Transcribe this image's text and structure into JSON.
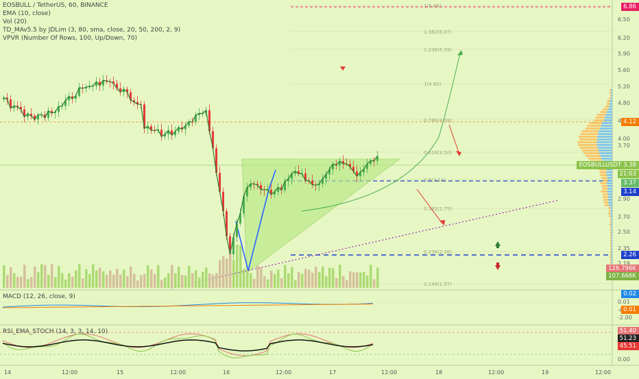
{
  "header": {
    "title": "EOSBULL / TetherUS, 60, BINANCE",
    "indicators": [
      "EMA (10, close)",
      "Vol (20)",
      "TD_MAv5.5 by JDLim (3, 80, sma, close, 20, 50, 200, 2, 9)",
      "VPVR (Number Of Rows, 100, Up/Down, 70)"
    ]
  },
  "panes": {
    "macd": "MACD (12, 26, close, 9)",
    "rsi": "RSI_EMA_STOCH (14, 3, 3, 14, 10)"
  },
  "price_axis": [
    "6.86",
    "6.50",
    "6.20",
    "5.90",
    "5.60",
    "5.20",
    "4.80",
    "4.40",
    "4.00",
    "3.70",
    "3.40",
    "3.14",
    "2.90",
    "2.70",
    "2.50",
    "2.35",
    "2.19",
    "2.00"
  ],
  "macd_axis": [
    "0.02",
    "0.01",
    "0.01",
    "-0.01",
    "-2.00"
  ],
  "rsi_axis": [
    "51.40",
    "51.23",
    "45.51",
    "0.00"
  ],
  "time_axis": [
    "14",
    "12:00",
    "15",
    "12:00",
    "16",
    "12:00",
    "17",
    "12:00",
    "18",
    "12:00",
    "19",
    "12:00"
  ],
  "fib_levels": [
    "1(6.86)",
    "1.382(6.07)",
    "1.236(5.59)",
    "1(4.80)",
    "0.786(4.08)",
    "0.618(3.50)",
    "0.5(3.14)",
    "0.382(2.75)",
    "0.236(2.26)",
    "0.146(1.97)"
  ],
  "price_tags": [
    {
      "text": "6.86",
      "color": "#e91e63"
    },
    {
      "text": "4.12",
      "color": "#f57c00"
    },
    {
      "text": "EOSBULLUSDT  3.38",
      "color": "#8bc34a"
    },
    {
      "text": "21:03",
      "color": "#8bc34a"
    },
    {
      "text": "3.37",
      "color": "#66bb6a"
    },
    {
      "text": "3.14",
      "color": "#1e3fcc"
    },
    {
      "text": "2.26",
      "color": "#1e3fcc"
    },
    {
      "text": "126.796K",
      "color": "#e57373"
    },
    {
      "text": "107.666K",
      "color": "#7cb342"
    }
  ],
  "macd_tags": [
    {
      "text": "0.02",
      "color": "#1e88e5"
    },
    {
      "text": "0.01",
      "color": "#f57c00"
    }
  ],
  "rsi_tags": [
    {
      "text": "51.40",
      "color": "#e57373"
    },
    {
      "text": "51.23",
      "color": "#222222"
    },
    {
      "text": "45.51",
      "color": "#e53935"
    }
  ],
  "colors": {
    "up": "#4caf50",
    "down": "#e53935",
    "fib": "#f57c00",
    "trend": "#2962ff",
    "bg": "#e6f7c4"
  }
}
